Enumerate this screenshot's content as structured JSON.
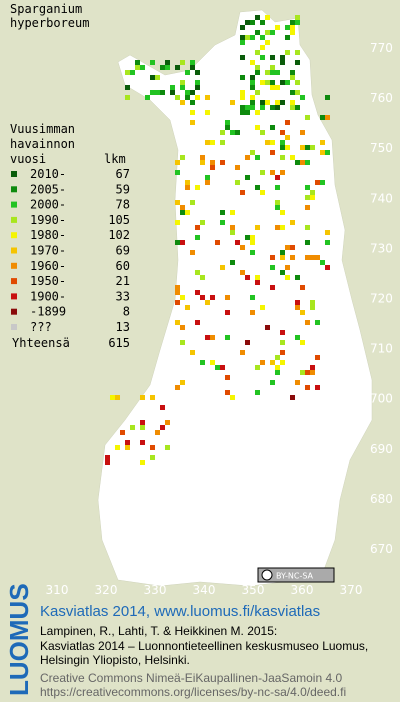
{
  "title": [
    "Sparganium",
    "hyperboreum"
  ],
  "legend": {
    "heading": [
      "Vuusimman",
      "havainnon"
    ],
    "col_year": "vuosi",
    "col_count": "lkm",
    "rows": [
      {
        "label": "2010-",
        "count": 67,
        "color": "#0a5c0a"
      },
      {
        "label": "2005-",
        "count": 59,
        "color": "#0e8a0e"
      },
      {
        "label": "2000-",
        "count": 78,
        "color": "#22c322"
      },
      {
        "label": "1990-",
        "count": 105,
        "color": "#a8e61e"
      },
      {
        "label": "1980-",
        "count": 102,
        "color": "#f5f500"
      },
      {
        "label": "1970-",
        "count": 69,
        "color": "#f5c400"
      },
      {
        "label": "1960-",
        "count": 60,
        "color": "#f08c00"
      },
      {
        "label": "1950-",
        "count": 21,
        "color": "#e04a00"
      },
      {
        "label": "1900-",
        "count": 33,
        "color": "#c81010"
      },
      {
        "label": "-1899",
        "count": 8,
        "color": "#8a0a0a"
      },
      {
        "label": "???",
        "count": 13,
        "color": "#c8c8c8"
      }
    ],
    "total": {
      "label": "Yhteensä",
      "count": 615
    }
  },
  "x_axis": [
    310,
    320,
    330,
    340,
    350,
    360,
    370
  ],
  "y_axis": [
    770,
    760,
    750,
    740,
    730,
    720,
    710,
    700,
    690,
    680,
    670
  ],
  "license": "BY-NC-SA",
  "footer": {
    "brand": "LUOMUS",
    "link": "Kasviatlas 2014, www.luomus.fi/kasviatlas",
    "citation": [
      "Lampinen, R., Lahti, T. & Heikkinen M. 2015:",
      "Kasviatlas 2014 – Luonnontieteellinen keskusmuseo Luomus,",
      "Helsingin Yliopisto, Helsinki."
    ],
    "license_text": [
      "Creative Commons Nimeä-EiKaupallinen-JaaSamoin 4.0",
      "https://creativecommons.org/licenses/by-nc-sa/4.0/deed.fi"
    ]
  }
}
